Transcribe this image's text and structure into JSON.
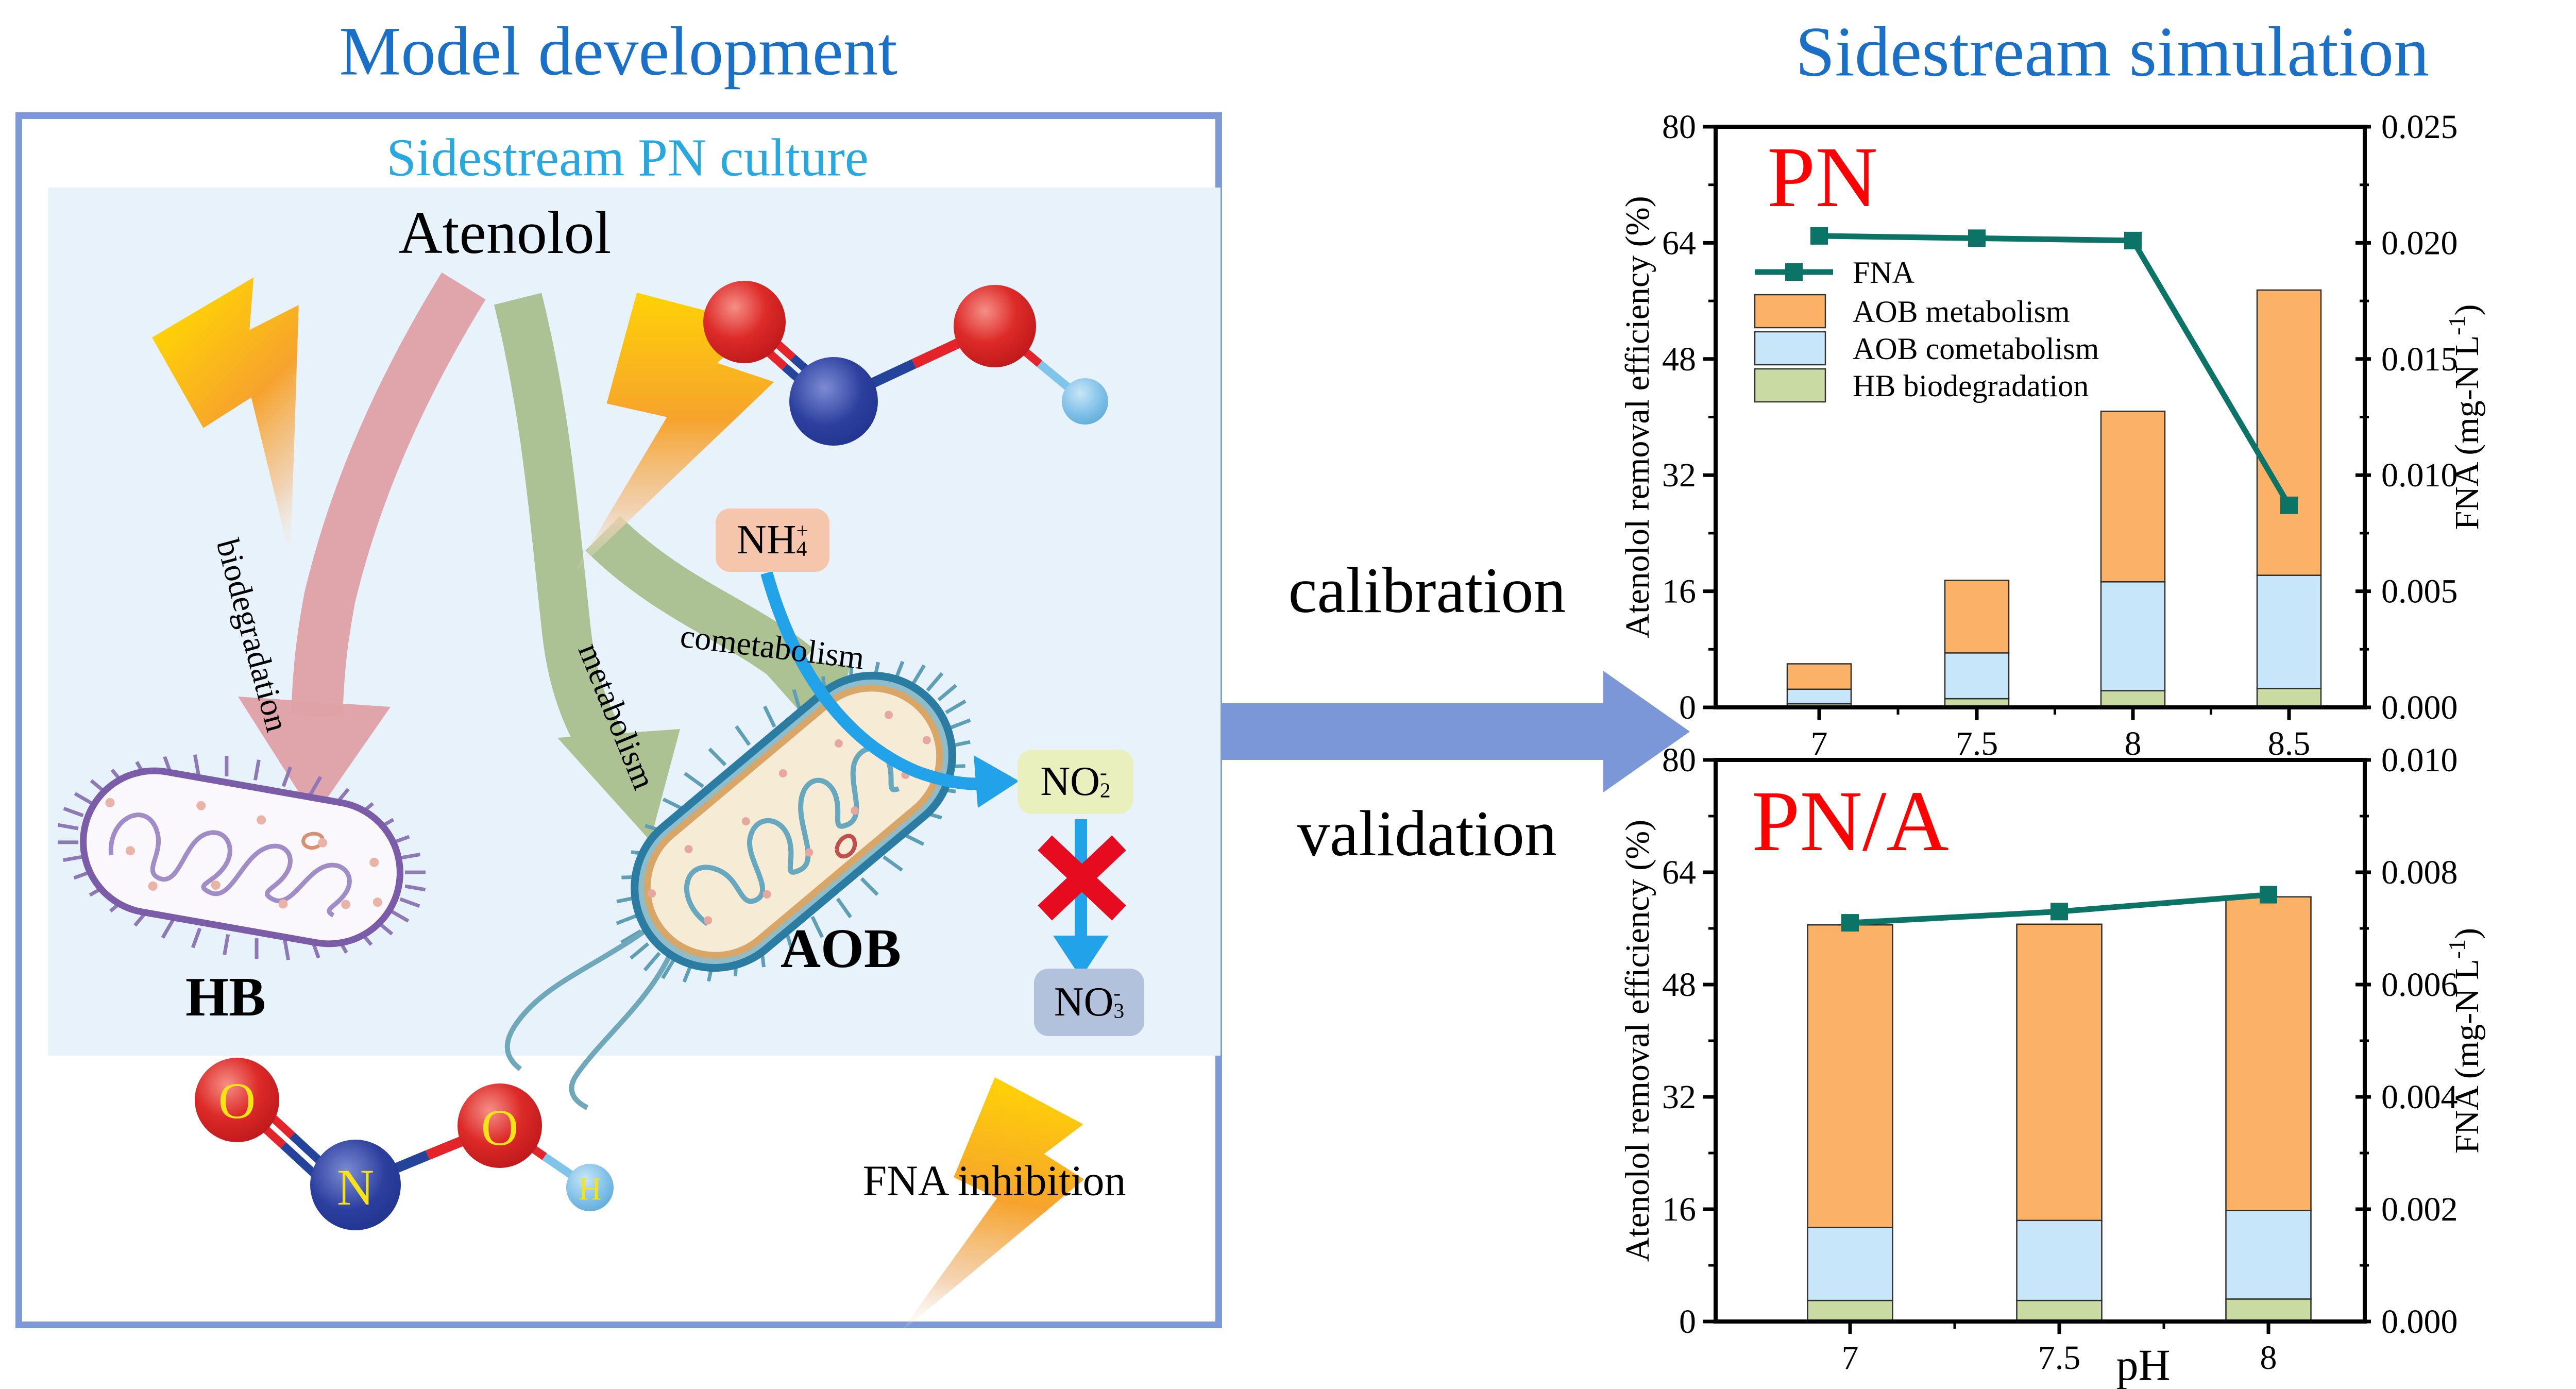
{
  "left_panel": {
    "title": "Model development",
    "subtitle": "Sidestream PN culture",
    "atenolol": "Atenolol",
    "biodegradation": "biodegradation",
    "metabolism": "metabolism",
    "cometabolism": "cometabolism",
    "hb": "HB",
    "aob": "AOB",
    "fna_inhibition": "FNA inhibition",
    "nh4": {
      "base": "NH",
      "sup": "+",
      "sub": "4"
    },
    "no2": {
      "base": "NO",
      "sup": "-",
      "sub": "2"
    },
    "no3": {
      "base": "NO",
      "sup": "-",
      "sub": "3"
    },
    "atoms": [
      "O",
      "N",
      "O",
      "H"
    ],
    "colors": {
      "title": "#1a70c7",
      "subtitle": "#29a8e0",
      "box_border": "#7d99d8",
      "panel_bg": "#e7f2fb",
      "nh4_bg": "#f5c6ab",
      "no2_bg": "#eaf0bd",
      "no3_bg": "#b2c1dc",
      "arrow_blue": "#22a2e9",
      "cross_red": "#e60b1e",
      "lightning_yellow": "#ffd206",
      "ribbon_pink": "#dfa1a7",
      "ribbon_green": "#a6bd88"
    }
  },
  "middle": {
    "calibration": "calibration",
    "validation": "validation",
    "arrow_color": "#7b97d7"
  },
  "right_panel": {
    "title": "Sidestream simulation",
    "title_color": "#1a70c7"
  },
  "chart_data": [
    {
      "type": "bar",
      "panel_label": "PN",
      "panel_label_color": "#ff0000",
      "categories": [
        "7",
        "7.5",
        "8",
        "8.5"
      ],
      "series": [
        {
          "name": "HB biodegradation",
          "color": "#c9dba3",
          "values": [
            0.5,
            1.2,
            2.3,
            2.6
          ]
        },
        {
          "name": "AOB cometabolism",
          "color": "#c7e6f9",
          "values": [
            2.0,
            6.3,
            15.0,
            15.6
          ]
        },
        {
          "name": "AOB metabolism",
          "color": "#fbb266",
          "values": [
            3.5,
            10.0,
            23.5,
            39.3
          ]
        }
      ],
      "line": {
        "name": "FNA",
        "color": "#0c7367",
        "values": [
          0.0203,
          0.0202,
          0.0201,
          0.0087
        ]
      },
      "ylabel": "Atenolol removal efficiency (%)",
      "ylim": [
        0,
        80
      ],
      "yticks": [
        0,
        16,
        32,
        48,
        64,
        80
      ],
      "y2label_parts": [
        "FNA (mg-N L",
        "-1",
        ")"
      ],
      "y2lim": [
        0,
        0.025
      ],
      "y2ticks": [
        "0.000",
        "0.005",
        "0.010",
        "0.015",
        "0.020",
        "0.025"
      ],
      "xlabel": "",
      "legend": true,
      "grid": false,
      "legend_position": "upper-left"
    },
    {
      "type": "bar",
      "panel_label": "PN/A",
      "panel_label_color": "#ff0000",
      "categories": [
        "7",
        "7.5",
        "8"
      ],
      "series": [
        {
          "name": "HB biodegradation",
          "color": "#c9dba3",
          "values": [
            3.0,
            3.0,
            3.2
          ]
        },
        {
          "name": "AOB cometabolism",
          "color": "#c7e6f9",
          "values": [
            10.4,
            11.4,
            12.6
          ]
        },
        {
          "name": "AOB metabolism",
          "color": "#fbb266",
          "values": [
            43.1,
            42.2,
            44.7
          ]
        }
      ],
      "line": {
        "name": "FNA",
        "color": "#0c7367",
        "values": [
          0.0071,
          0.0073,
          0.0076
        ]
      },
      "ylabel": "Atenolol removal efficiency (%)",
      "ylim": [
        0,
        80
      ],
      "yticks": [
        0,
        16,
        32,
        48,
        64,
        80
      ],
      "y2label_parts": [
        "FNA (mg-N L",
        "-1",
        ")"
      ],
      "y2lim": [
        0,
        0.01
      ],
      "y2ticks": [
        "0.000",
        "0.002",
        "0.004",
        "0.006",
        "0.008",
        "0.010"
      ],
      "xlabel": "pH",
      "legend": false,
      "grid": false,
      "legend_position": "none"
    }
  ]
}
